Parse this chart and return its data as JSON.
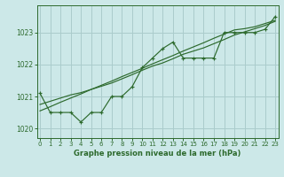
{
  "x_hours": [
    0,
    1,
    2,
    3,
    4,
    5,
    6,
    7,
    8,
    9,
    10,
    11,
    12,
    13,
    14,
    15,
    16,
    17,
    18,
    19,
    20,
    21,
    22,
    23
  ],
  "pressure_main": [
    1021.1,
    1020.5,
    1020.5,
    1020.5,
    1020.2,
    1020.5,
    1020.5,
    1021.0,
    1021.0,
    1021.3,
    1021.9,
    1022.2,
    1022.5,
    1022.7,
    1022.2,
    1022.2,
    1022.2,
    1022.2,
    1023.0,
    1023.0,
    1023.0,
    1023.0,
    1023.1,
    1023.5
  ],
  "pressure_trend1": [
    1020.55,
    1020.68,
    1020.82,
    1020.95,
    1021.08,
    1021.22,
    1021.35,
    1021.48,
    1021.62,
    1021.75,
    1021.88,
    1022.02,
    1022.15,
    1022.28,
    1022.42,
    1022.55,
    1022.68,
    1022.82,
    1022.95,
    1023.08,
    1023.12,
    1023.18,
    1023.28,
    1023.38
  ],
  "pressure_trend2": [
    1020.75,
    1020.85,
    1020.95,
    1021.05,
    1021.12,
    1021.22,
    1021.32,
    1021.42,
    1021.55,
    1021.68,
    1021.82,
    1021.95,
    1022.05,
    1022.18,
    1022.32,
    1022.42,
    1022.52,
    1022.65,
    1022.78,
    1022.92,
    1023.02,
    1023.12,
    1023.22,
    1023.35
  ],
  "ylim": [
    1019.7,
    1023.85
  ],
  "xlim": [
    -0.3,
    23.3
  ],
  "bg_color": "#cce8e8",
  "grid_color": "#aacccc",
  "line_color": "#2d6a2d",
  "xlabel": "Graphe pression niveau de la mer (hPa)",
  "yticks": [
    1020,
    1021,
    1022,
    1023
  ],
  "xticks": [
    0,
    1,
    2,
    3,
    4,
    5,
    6,
    7,
    8,
    9,
    10,
    11,
    12,
    13,
    14,
    15,
    16,
    17,
    18,
    19,
    20,
    21,
    22,
    23
  ]
}
